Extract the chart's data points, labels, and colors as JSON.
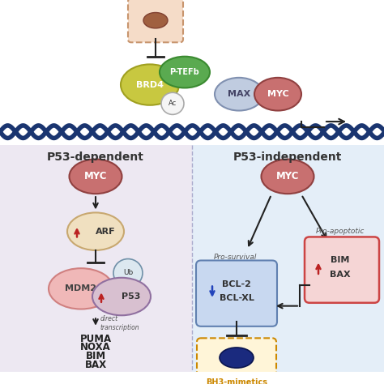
{
  "bg_top": "#ffffff",
  "bg_left": "#ede8f2",
  "bg_right": "#e4eef8",
  "dna_color": "#1a3570",
  "top_section": {
    "cell_color": "#c8956e",
    "cell_border": "#c8956e",
    "brd4_color": "#c8c840",
    "brd4_edge": "#a0a020",
    "brd4_label": "BRD4",
    "ptefb_color": "#5aaa50",
    "ptefb_edge": "#3a8a30",
    "ptefb_label": "P-TEFb",
    "ac_color": "#f5f5f5",
    "ac_edge": "#aaaaaa",
    "ac_label": "Ac",
    "max_color": "#c0cce0",
    "max_edge": "#8090b0",
    "max_label": "MAX",
    "myc_color": "#c87070",
    "myc_edge": "#904040",
    "myc_label": "MYC"
  },
  "left_section": {
    "label": "P53-dependent",
    "myc_color": "#c87070",
    "myc_edge": "#904040",
    "myc_label": "MYC",
    "arf_color": "#f0e0c0",
    "arf_edge": "#c8a870",
    "arf_label": "ARF",
    "mdm2_color": "#f0b8b8",
    "mdm2_edge": "#d08080",
    "mdm2_label": "MDM2",
    "ub_color": "#dce8f0",
    "ub_edge": "#7090a8",
    "ub_label": "Ub",
    "p53_color": "#d8c0d0",
    "p53_edge": "#9070a0",
    "p53_label": "P53",
    "targets": [
      "PUMA",
      "NOXA",
      "BIM",
      "BAX"
    ],
    "direct_label": "direct\ntranscription"
  },
  "right_section": {
    "label": "P53-independent",
    "myc_color": "#c87070",
    "myc_edge": "#904040",
    "myc_label": "MYC",
    "prosurvival_label": "Pro-survival",
    "prosurvival_color": "#c8d8f0",
    "prosurvival_border": "#6080b0",
    "bcl2_label": "BCL-2",
    "bclxl_label": "BCL-XL",
    "proapoptotic_label": "Pro-apoptotic",
    "proapoptotic_color": "#f5d5d5",
    "proapoptotic_border": "#cc4444",
    "bim_label": "BIM",
    "bax_label": "BAX",
    "bh3_color": "#fff5d8",
    "bh3_border": "#cc8800",
    "bh3_label": "BH3-mimetics",
    "bh3_cell_color": "#1a2a7e"
  },
  "arrow_color": "#222222",
  "red_arrow": "#bb2222",
  "blue_arrow": "#2244bb"
}
